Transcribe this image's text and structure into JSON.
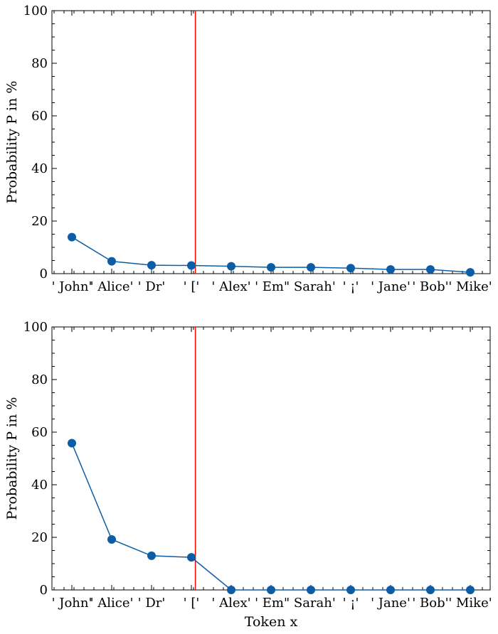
{
  "chart_data": [
    {
      "type": "line",
      "categories": [
        "' John'",
        "' Alice'",
        "' Dr'",
        "' ['",
        "' Alex'",
        "' Em'",
        "' Sarah'",
        "' ¡'",
        "' Jane'",
        "' Bob'",
        "' Mike'"
      ],
      "series": [
        {
          "values": [
            13.9,
            4.7,
            3.2,
            3.1,
            2.8,
            2.4,
            2.4,
            2.1,
            1.6,
            1.6,
            0.5
          ],
          "color": "#0C5DA5"
        }
      ],
      "vline": {
        "x_index": 3.1,
        "color": "#FF0000"
      },
      "xlabel": "",
      "ylabel": "Probability P in %",
      "ylim": [
        0,
        100
      ],
      "yticks": [
        0,
        20,
        40,
        60,
        80,
        100
      ],
      "grid": false
    },
    {
      "type": "line",
      "categories": [
        "' John'",
        "' Alice'",
        "' Dr'",
        "' ['",
        "' Alex'",
        "' Em'",
        "' Sarah'",
        "' ¡'",
        "' Jane'",
        "' Bob'",
        "' Mike'"
      ],
      "series": [
        {
          "values": [
            55.8,
            19.2,
            13.0,
            12.4,
            0,
            0,
            0,
            0,
            0,
            0,
            0
          ],
          "color": "#0C5DA5"
        }
      ],
      "vline": {
        "x_index": 3.1,
        "color": "#FF0000"
      },
      "xlabel": "Token x",
      "ylabel": "Probability P in %",
      "ylim": [
        0,
        100
      ],
      "yticks": [
        0,
        20,
        40,
        60,
        80,
        100
      ],
      "grid": false
    }
  ]
}
